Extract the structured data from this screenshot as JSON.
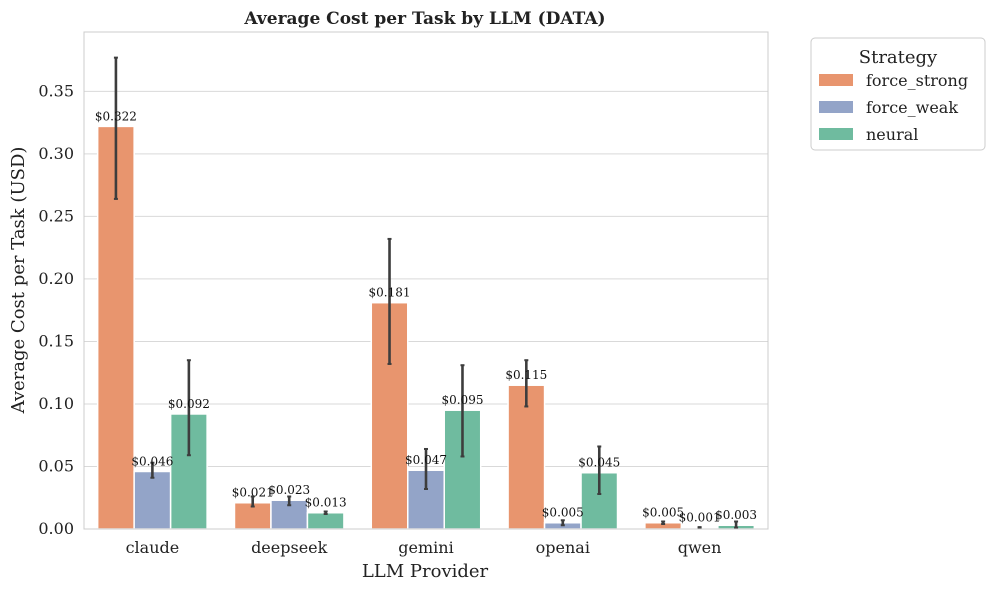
{
  "chart_data": {
    "type": "bar",
    "title": "Average Cost per Task by LLM (DATA)",
    "xlabel": "LLM Provider",
    "ylabel": "Average Cost per Task (USD)",
    "ylim": [
      0,
      0.3975
    ],
    "yticks": [
      0.0,
      0.05,
      0.1,
      0.15,
      0.2,
      0.25,
      0.3,
      0.35
    ],
    "ytick_labels": [
      "0.00",
      "0.05",
      "0.10",
      "0.15",
      "0.20",
      "0.25",
      "0.30",
      "0.35"
    ],
    "grid": true,
    "categories": [
      "claude",
      "deepseek",
      "gemini",
      "openai",
      "qwen"
    ],
    "legend": {
      "title": "Strategy",
      "placement": "outside-top-right"
    },
    "series": [
      {
        "name": "force_strong",
        "color": "#e8956e",
        "values": [
          0.322,
          0.021,
          0.181,
          0.115,
          0.005
        ],
        "labels": [
          "$0.322",
          "$0.021",
          "$0.181",
          "$0.115",
          "$0.005"
        ],
        "err_low": [
          0.264,
          0.018,
          0.132,
          0.098,
          0.004
        ],
        "err_high": [
          0.377,
          0.026,
          0.232,
          0.135,
          0.006
        ]
      },
      {
        "name": "force_weak",
        "color": "#93a4c8",
        "values": [
          0.046,
          0.023,
          0.047,
          0.005,
          0.001
        ],
        "labels": [
          "$0.046",
          "$0.023",
          "$0.047",
          "$0.005",
          "$0.001"
        ],
        "err_low": [
          0.041,
          0.019,
          0.032,
          0.003,
          0.0005
        ],
        "err_high": [
          0.053,
          0.026,
          0.064,
          0.007,
          0.0015
        ]
      },
      {
        "name": "neural",
        "color": "#6fbb9f",
        "values": [
          0.092,
          0.013,
          0.095,
          0.045,
          0.003
        ],
        "labels": [
          "$0.092",
          "$0.013",
          "$0.095",
          "$0.045",
          "$0.003"
        ],
        "err_low": [
          0.059,
          0.012,
          0.058,
          0.028,
          0.001
        ],
        "err_high": [
          0.135,
          0.014,
          0.131,
          0.066,
          0.006
        ]
      }
    ]
  }
}
